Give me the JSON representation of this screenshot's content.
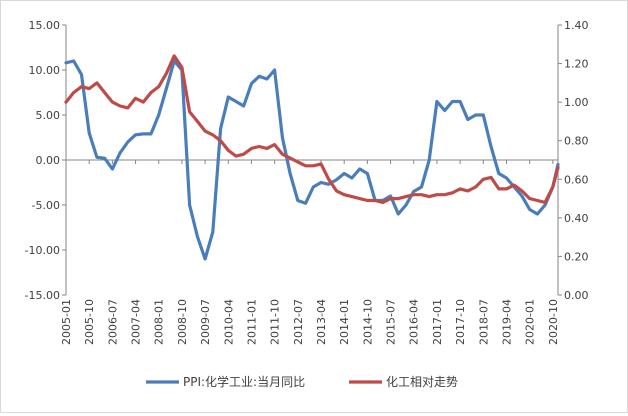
{
  "chart_data": {
    "type": "line",
    "title": "",
    "x_tick_labels": [
      "2005-01",
      "2005-10",
      "2006-07",
      "2007-04",
      "2008-01",
      "2008-10",
      "2009-07",
      "2010-04",
      "2011-01",
      "2011-10",
      "2012-07",
      "2013-04",
      "2014-01",
      "2014-10",
      "2015-07",
      "2016-04",
      "2017-01",
      "2017-10",
      "2018-07",
      "2019-04",
      "2020-01",
      "2020-10"
    ],
    "y_left": {
      "min": -15,
      "max": 15,
      "step": 5,
      "tick_labels": [
        "15.00",
        "10.00",
        "5.00",
        "0.00",
        "-5.00",
        "-10.00",
        "-15.00"
      ]
    },
    "y_right": {
      "min": 0,
      "max": 1.4,
      "step": 0.2,
      "tick_labels": [
        "1.40",
        "1.20",
        "1.00",
        "0.80",
        "0.60",
        "0.40",
        "0.20",
        "0.00"
      ]
    },
    "legend_position": "bottom",
    "series": [
      {
        "name": "PPI:化学工业:当月同比",
        "axis": "left",
        "color": "#4a7ebb",
        "x": [
          "2005-01",
          "2005-04",
          "2005-07",
          "2005-10",
          "2006-01",
          "2006-04",
          "2006-07",
          "2006-10",
          "2007-01",
          "2007-04",
          "2007-07",
          "2007-10",
          "2008-01",
          "2008-04",
          "2008-07",
          "2008-10",
          "2009-01",
          "2009-04",
          "2009-07",
          "2009-10",
          "2010-01",
          "2010-04",
          "2010-07",
          "2010-10",
          "2011-01",
          "2011-04",
          "2011-07",
          "2011-10",
          "2012-01",
          "2012-04",
          "2012-07",
          "2012-10",
          "2013-01",
          "2013-04",
          "2013-07",
          "2013-10",
          "2014-01",
          "2014-04",
          "2014-07",
          "2014-10",
          "2015-01",
          "2015-04",
          "2015-07",
          "2015-10",
          "2016-01",
          "2016-04",
          "2016-07",
          "2016-10",
          "2017-01",
          "2017-04",
          "2017-07",
          "2017-10",
          "2018-01",
          "2018-04",
          "2018-07",
          "2018-10",
          "2019-01",
          "2019-04",
          "2019-07",
          "2019-10",
          "2020-01",
          "2020-04",
          "2020-07",
          "2020-10",
          "2020-12"
        ],
        "values": [
          10.8,
          11.0,
          9.5,
          3.0,
          0.3,
          0.2,
          -1.0,
          0.8,
          2.0,
          2.8,
          2.9,
          2.9,
          5.0,
          8.0,
          11.0,
          10.0,
          -5.0,
          -8.5,
          -11.0,
          -8.0,
          3.5,
          7.0,
          6.5,
          6.0,
          8.5,
          9.3,
          9.0,
          10.0,
          2.5,
          -1.5,
          -4.5,
          -4.8,
          -3.0,
          -2.5,
          -2.7,
          -2.2,
          -1.5,
          -2.0,
          -1.0,
          -1.5,
          -4.5,
          -4.5,
          -4.0,
          -6.0,
          -5.0,
          -3.5,
          -3.0,
          0.0,
          6.5,
          5.5,
          6.5,
          6.5,
          4.5,
          5.0,
          5.0,
          1.5,
          -1.5,
          -2.0,
          -3.0,
          -4.0,
          -5.5,
          -6.0,
          -5.0,
          -3.0,
          -0.5
        ]
      },
      {
        "name": "化工相对走势",
        "axis": "right",
        "color": "#be4b48",
        "x": [
          "2005-01",
          "2005-04",
          "2005-07",
          "2005-10",
          "2006-01",
          "2006-04",
          "2006-07",
          "2006-10",
          "2007-01",
          "2007-04",
          "2007-07",
          "2007-10",
          "2008-01",
          "2008-04",
          "2008-07",
          "2008-10",
          "2009-01",
          "2009-04",
          "2009-07",
          "2009-10",
          "2010-01",
          "2010-04",
          "2010-07",
          "2010-10",
          "2011-01",
          "2011-04",
          "2011-07",
          "2011-10",
          "2012-01",
          "2012-04",
          "2012-07",
          "2012-10",
          "2013-01",
          "2013-04",
          "2013-07",
          "2013-10",
          "2014-01",
          "2014-04",
          "2014-07",
          "2014-10",
          "2015-01",
          "2015-04",
          "2015-07",
          "2015-10",
          "2016-01",
          "2016-04",
          "2016-07",
          "2016-10",
          "2017-01",
          "2017-04",
          "2017-07",
          "2017-10",
          "2018-01",
          "2018-04",
          "2018-07",
          "2018-10",
          "2019-01",
          "2019-04",
          "2019-07",
          "2019-10",
          "2020-01",
          "2020-04",
          "2020-07",
          "2020-10",
          "2020-12"
        ],
        "values": [
          1.0,
          1.05,
          1.08,
          1.07,
          1.1,
          1.05,
          1.0,
          0.98,
          0.97,
          1.02,
          1.0,
          1.05,
          1.08,
          1.15,
          1.24,
          1.18,
          0.95,
          0.9,
          0.85,
          0.83,
          0.8,
          0.75,
          0.72,
          0.73,
          0.76,
          0.77,
          0.76,
          0.78,
          0.73,
          0.71,
          0.69,
          0.67,
          0.67,
          0.68,
          0.6,
          0.54,
          0.52,
          0.51,
          0.5,
          0.49,
          0.49,
          0.48,
          0.5,
          0.5,
          0.51,
          0.52,
          0.52,
          0.51,
          0.52,
          0.52,
          0.53,
          0.55,
          0.54,
          0.56,
          0.6,
          0.61,
          0.55,
          0.55,
          0.57,
          0.54,
          0.5,
          0.49,
          0.48,
          0.56,
          0.66
        ]
      }
    ]
  }
}
